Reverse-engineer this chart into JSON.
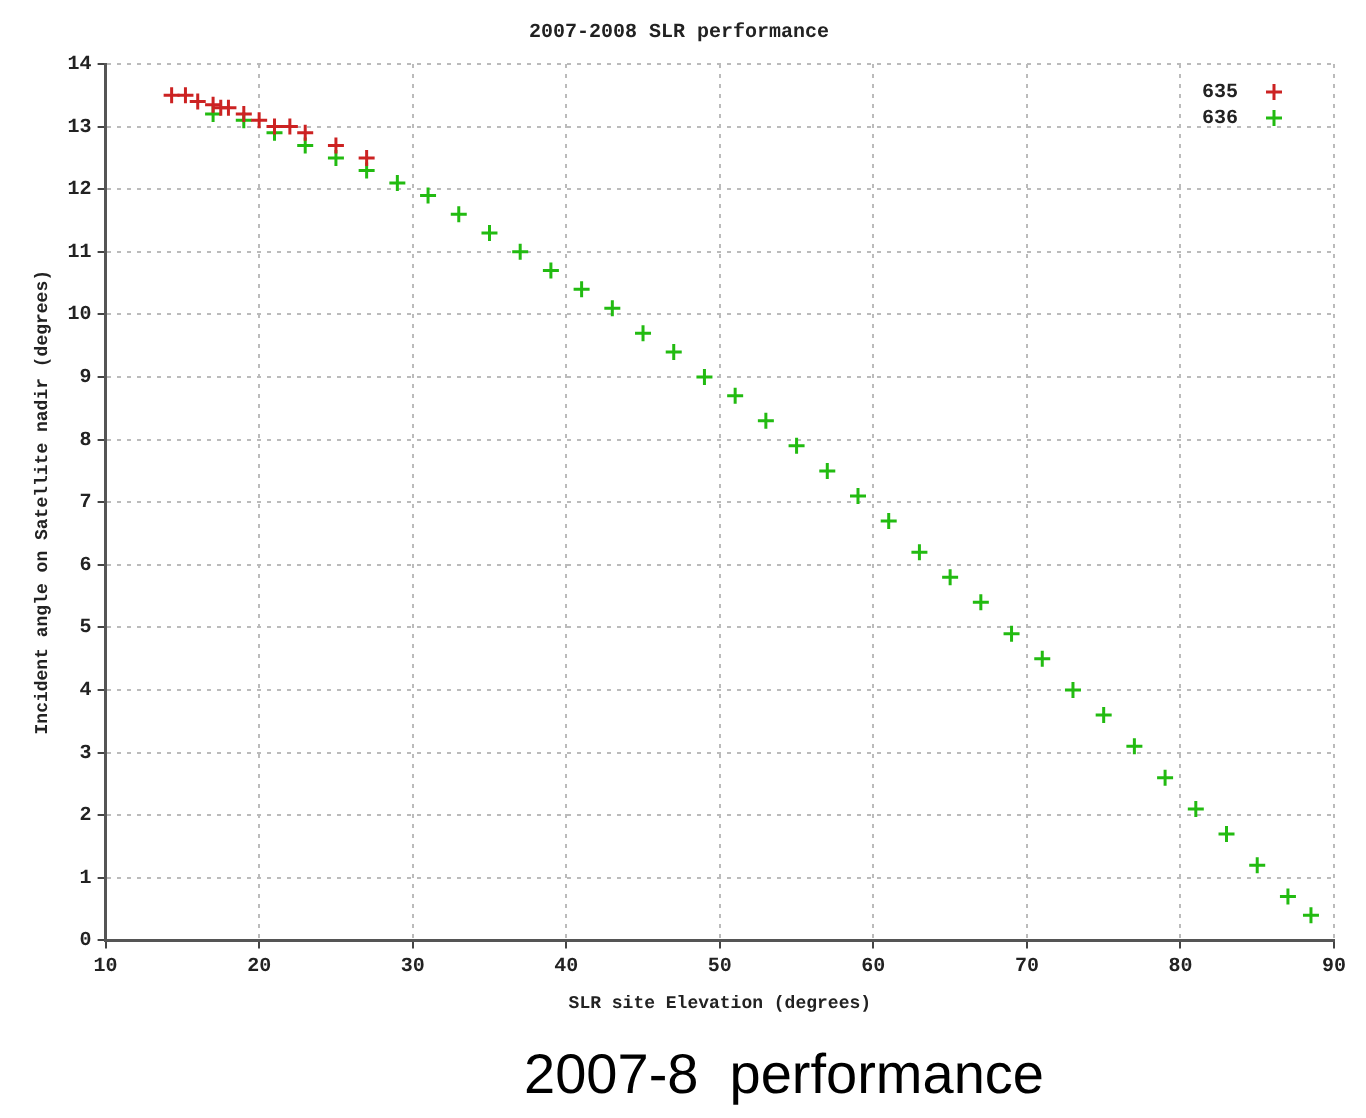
{
  "chart_data": {
    "type": "scatter",
    "title": "2007-2008 SLR performance",
    "xlabel": "SLR site Elevation (degrees)",
    "ylabel": "Incident angle on Satellite nadir (degrees)",
    "annotations": [
      "2007-8  performance"
    ],
    "xlim": [
      10,
      90
    ],
    "xticks": [
      10,
      20,
      30,
      40,
      50,
      60,
      70,
      80,
      90
    ],
    "ylim": [
      0,
      14
    ],
    "yticks": [
      0,
      1,
      2,
      3,
      4,
      5,
      6,
      7,
      8,
      9,
      10,
      11,
      12,
      13,
      14
    ],
    "grid": true,
    "legend": "top right",
    "marker": "cross",
    "series": [
      {
        "name": "635",
        "color": "#cc2222",
        "x": [
          14.3,
          15.2,
          16,
          17,
          17.5,
          18,
          19,
          20,
          21,
          22,
          23,
          25,
          27
        ],
        "values": [
          13.5,
          13.5,
          13.4,
          13.35,
          13.3,
          13.3,
          13.2,
          13.1,
          13.0,
          13.0,
          12.9,
          12.7,
          12.5
        ]
      },
      {
        "name": "636",
        "color": "#22bb11",
        "x": [
          17,
          19,
          21,
          23,
          25,
          27,
          29,
          31,
          33,
          35,
          37,
          39,
          41,
          43,
          45,
          47,
          49,
          51,
          53,
          55,
          57,
          59,
          61,
          63,
          65,
          67,
          69,
          71,
          73,
          75,
          77,
          79,
          81,
          83,
          85,
          87,
          88.5
        ],
        "values": [
          13.2,
          13.1,
          12.9,
          12.7,
          12.5,
          12.3,
          12.1,
          11.9,
          11.6,
          11.3,
          11.0,
          10.7,
          10.4,
          10.1,
          9.7,
          9.4,
          9.0,
          8.7,
          8.3,
          7.9,
          7.5,
          7.1,
          6.7,
          6.2,
          5.8,
          5.4,
          4.9,
          4.5,
          4.0,
          3.6,
          3.1,
          2.6,
          2.1,
          1.7,
          1.2,
          0.7,
          0.4
        ]
      }
    ]
  }
}
